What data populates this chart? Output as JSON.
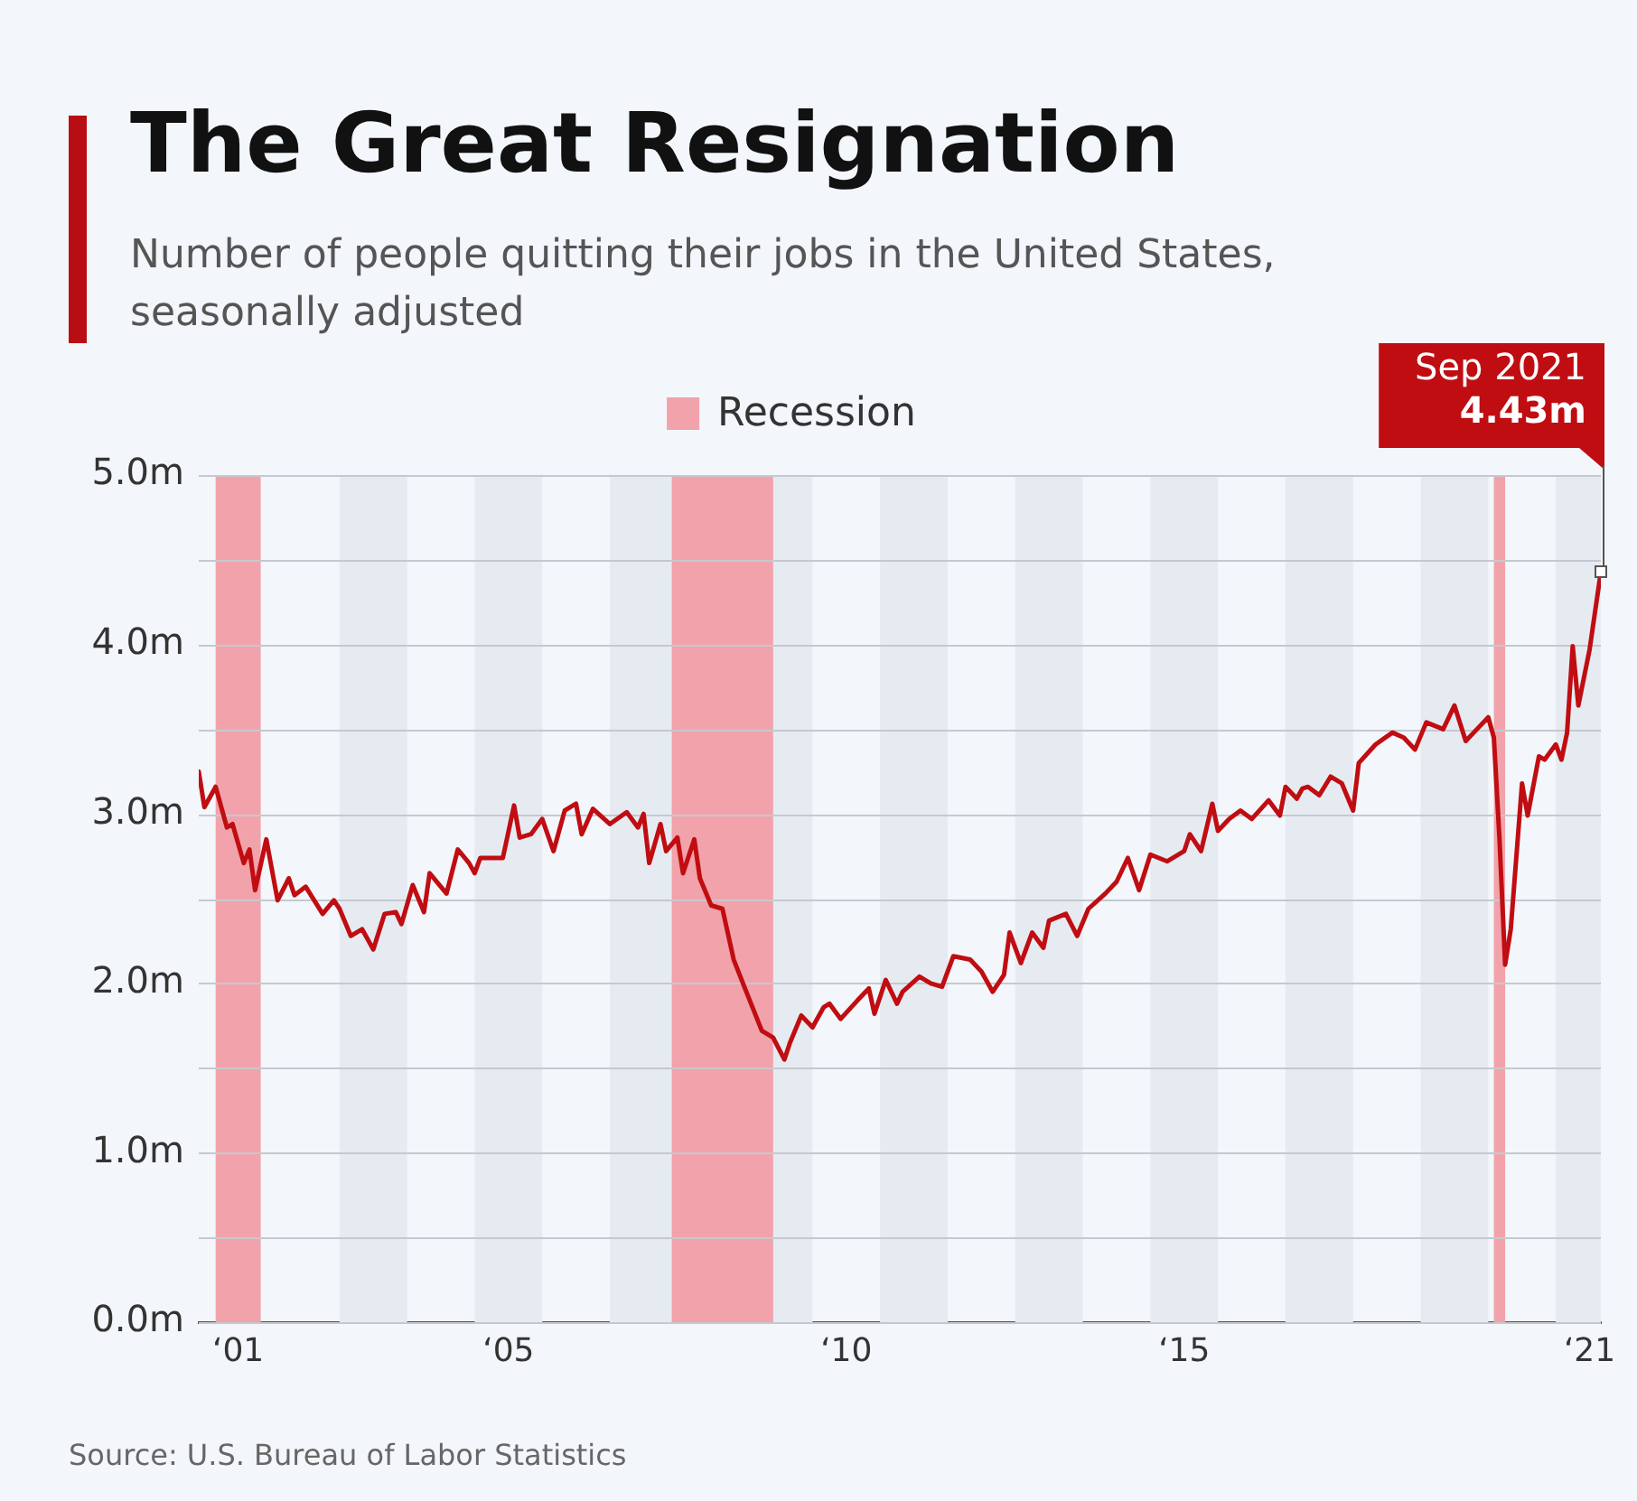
{
  "chart_data": {
    "type": "line",
    "title": "The Great Resignation",
    "subtitle": "Number of people quitting their jobs in the United States,\nseasonally adjusted",
    "x": [
      "2000-12",
      "2001-01",
      "2001-03",
      "2001-05",
      "2001-06",
      "2001-08",
      "2001-09",
      "2001-10",
      "2001-12",
      "2002-02",
      "2002-04",
      "2002-05",
      "2002-07",
      "2002-10",
      "2002-12",
      "2003-01",
      "2003-03",
      "2003-05",
      "2003-07",
      "2003-09",
      "2003-11",
      "2003-12",
      "2004-02",
      "2004-04",
      "2004-05",
      "2004-08",
      "2004-10",
      "2004-12",
      "2005-01",
      "2005-02",
      "2005-06",
      "2005-08",
      "2005-09",
      "2005-11",
      "2006-01",
      "2006-03",
      "2006-05",
      "2006-07",
      "2006-08",
      "2006-10",
      "2007-01",
      "2007-04",
      "2007-06",
      "2007-07",
      "2007-08",
      "2007-10",
      "2007-11",
      "2008-01",
      "2008-02",
      "2008-04",
      "2008-05",
      "2008-07",
      "2008-09",
      "2008-11",
      "2009-01",
      "2009-04",
      "2009-06",
      "2009-08",
      "2009-09",
      "2009-11",
      "2010-01",
      "2010-03",
      "2010-04",
      "2010-06",
      "2010-09",
      "2010-11",
      "2010-12",
      "2011-02",
      "2011-04",
      "2011-05",
      "2011-08",
      "2011-10",
      "2011-12",
      "2012-02",
      "2012-05",
      "2012-07",
      "2012-09",
      "2012-11",
      "2012-12",
      "2013-02",
      "2013-04",
      "2013-06",
      "2013-07",
      "2013-10",
      "2013-12",
      "2014-02",
      "2014-05",
      "2014-07",
      "2014-09",
      "2014-11",
      "2015-01",
      "2015-04",
      "2015-07",
      "2015-08",
      "2015-10",
      "2015-12",
      "2016-01",
      "2016-03",
      "2016-05",
      "2016-07",
      "2016-10",
      "2016-12",
      "2017-01",
      "2017-03",
      "2017-04",
      "2017-05",
      "2017-07",
      "2017-09",
      "2017-11",
      "2018-01",
      "2018-02",
      "2018-05",
      "2018-08",
      "2018-10",
      "2018-12",
      "2019-02",
      "2019-05",
      "2019-07",
      "2019-09",
      "2019-11",
      "2020-01",
      "2020-02",
      "2020-03",
      "2020-04",
      "2020-05",
      "2020-07",
      "2020-08",
      "2020-10",
      "2020-11",
      "2021-01",
      "2021-02",
      "2021-03",
      "2021-04",
      "2021-05",
      "2021-07",
      "2021-09"
    ],
    "series": [
      {
        "color": "#c00d12",
        "values": [
          3.25,
          3.04,
          3.16,
          2.92,
          2.94,
          2.71,
          2.79,
          2.55,
          2.85,
          2.49,
          2.62,
          2.52,
          2.57,
          2.41,
          2.49,
          2.44,
          2.28,
          2.32,
          2.2,
          2.41,
          2.42,
          2.35,
          2.58,
          2.42,
          2.65,
          2.53,
          2.79,
          2.71,
          2.65,
          2.74,
          2.74,
          3.05,
          2.86,
          2.88,
          2.97,
          2.78,
          3.02,
          3.06,
          2.88,
          3.03,
          2.94,
          3.01,
          2.92,
          3.0,
          2.71,
          2.94,
          2.78,
          2.86,
          2.65,
          2.85,
          2.62,
          2.46,
          2.44,
          2.14,
          1.97,
          1.72,
          1.68,
          1.55,
          1.65,
          1.81,
          1.74,
          1.86,
          1.88,
          1.79,
          1.9,
          1.97,
          1.82,
          2.02,
          1.88,
          1.95,
          2.04,
          2.0,
          1.98,
          2.16,
          2.14,
          2.07,
          1.95,
          2.05,
          2.3,
          2.12,
          2.3,
          2.21,
          2.37,
          2.41,
          2.28,
          2.44,
          2.53,
          2.6,
          2.74,
          2.55,
          2.76,
          2.72,
          2.78,
          2.88,
          2.78,
          3.06,
          2.9,
          2.97,
          3.02,
          2.97,
          3.08,
          2.99,
          3.16,
          3.09,
          3.15,
          3.16,
          3.11,
          3.22,
          3.18,
          3.02,
          3.3,
          3.41,
          3.48,
          3.45,
          3.38,
          3.54,
          3.5,
          3.64,
          3.43,
          3.5,
          3.57,
          3.45,
          2.85,
          2.11,
          2.32,
          3.18,
          2.99,
          3.34,
          3.32,
          3.41,
          3.32,
          3.48,
          3.99,
          3.64,
          3.97,
          4.43
        ]
      }
    ],
    "xlim": [
      "2000-12",
      "2021-09"
    ],
    "xticks": [
      {
        "value": "2001-07",
        "label": "‘01"
      },
      {
        "value": "2005-07",
        "label": "‘05"
      },
      {
        "value": "2010-07",
        "label": "‘10"
      },
      {
        "value": "2015-07",
        "label": "‘15"
      },
      {
        "value": "2021-07",
        "label": "‘21"
      }
    ],
    "ylim": [
      0,
      5
    ],
    "yticks": [
      {
        "value": 0,
        "label": "0.0m"
      },
      {
        "value": 0.5,
        "label": null
      },
      {
        "value": 1,
        "label": "1.0m"
      },
      {
        "value": 1.5,
        "label": null
      },
      {
        "value": 2,
        "label": "2.0m"
      },
      {
        "value": 2.5,
        "label": null
      },
      {
        "value": 3,
        "label": "3.0m"
      },
      {
        "value": 3.5,
        "label": null
      },
      {
        "value": 4,
        "label": "4.0m"
      },
      {
        "value": 4.5,
        "label": null
      },
      {
        "value": 5,
        "label": "5.0m"
      }
    ],
    "grid": "y",
    "legend": "top",
    "marker": "none",
    "line_style": "solid",
    "bands": [
      {
        "axis": "x",
        "from": "2003-01",
        "to": "2004-01",
        "color": "#e6ebf2"
      },
      {
        "axis": "x",
        "from": "2005-01",
        "to": "2006-01",
        "color": "#e6ebf2"
      },
      {
        "axis": "x",
        "from": "2007-01",
        "to": "2008-01",
        "color": "#e6ebf2"
      },
      {
        "axis": "x",
        "from": "2009-01",
        "to": "2010-01",
        "color": "#e6ebf2"
      },
      {
        "axis": "x",
        "from": "2011-01",
        "to": "2012-01",
        "color": "#e6ebf2"
      },
      {
        "axis": "x",
        "from": "2013-01",
        "to": "2014-01",
        "color": "#e6ebf2"
      },
      {
        "axis": "x",
        "from": "2015-01",
        "to": "2016-01",
        "color": "#e6ebf2"
      },
      {
        "axis": "x",
        "from": "2017-01",
        "to": "2018-01",
        "color": "#e6ebf2"
      },
      {
        "axis": "x",
        "from": "2019-01",
        "to": "2020-01",
        "color": "#e6ebf2"
      },
      {
        "axis": "x",
        "from": "2021-01",
        "to": "2021-09",
        "color": "#e6ebf2"
      },
      {
        "axis": "x",
        "from": "2001-03",
        "to": "2001-11",
        "label": "Recession",
        "color": "#f2a2aa"
      },
      {
        "axis": "x",
        "from": "2007-12",
        "to": "2009-06",
        "color": "#f2a2aa"
      },
      {
        "axis": "x",
        "from": "2020-02",
        "to": "2020-04",
        "color": "#f2a2aa"
      }
    ],
    "annotations": [
      {
        "text": "Sep 2021\n4.43m",
        "x": "2021-09",
        "y": 4.43
      },
      "Source: U.S. Bureau of Labor Statistics"
    ]
  }
}
